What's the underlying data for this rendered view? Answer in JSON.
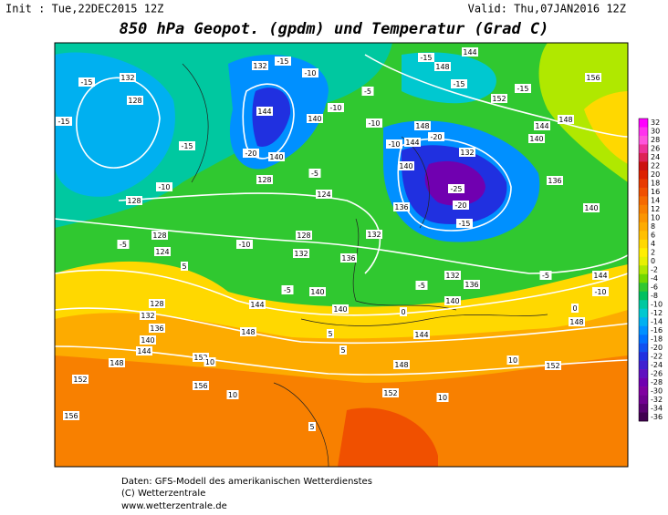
{
  "header": {
    "init": "Init : Tue,22DEC2015 12Z",
    "valid": "Valid: Thu,07JAN2016 12Z",
    "title": "850 hPa Geopot. (gpdm) und Temperatur (Grad C)"
  },
  "legend": {
    "levels": [
      32,
      30,
      28,
      26,
      24,
      22,
      20,
      18,
      16,
      14,
      12,
      10,
      8,
      6,
      4,
      2,
      0,
      -2,
      -4,
      -6,
      -8,
      -10,
      -12,
      -14,
      -16,
      -18,
      -20,
      -22,
      -24,
      -26,
      -28,
      -30,
      -32,
      -34,
      -36
    ],
    "colors": [
      "#ff00ff",
      "#ff33ee",
      "#ff55dd",
      "#ee3399",
      "#dd2255",
      "#cc1111",
      "#dd2200",
      "#e83a00",
      "#f05000",
      "#f56a00",
      "#f88000",
      "#fb9500",
      "#fdab00",
      "#ffc000",
      "#ffd800",
      "#ffee00",
      "#e8f000",
      "#b0e800",
      "#70d800",
      "#30c830",
      "#00c060",
      "#00c8a0",
      "#00c8d0",
      "#00b0f0",
      "#0090ff",
      "#0070ff",
      "#1050f0",
      "#2030e0",
      "#4020d0",
      "#6010c0",
      "#7000b0",
      "#8000a0",
      "#700090",
      "#580070",
      "#400050"
    ]
  },
  "contour_labels": [
    132,
    -15,
    128,
    -15,
    -15,
    -10,
    128,
    128,
    -5,
    124,
    5,
    128,
    132,
    136,
    140,
    144,
    148,
    152,
    156,
    156,
    152,
    10,
    10,
    148,
    144,
    -5,
    -10,
    132,
    128,
    124,
    -5,
    128,
    -20,
    140,
    144,
    -15,
    -10,
    -10,
    140,
    132,
    -5,
    -10,
    148,
    -20,
    144,
    -10,
    132,
    140,
    -25,
    -20,
    136,
    -15,
    132,
    136,
    132,
    136,
    140,
    -5,
    0,
    144,
    148,
    5,
    5,
    140,
    140,
    152,
    152,
    10,
    10,
    5,
    148,
    0,
    -5,
    144,
    140,
    136,
    140,
    144,
    148,
    -15,
    152,
    -15,
    -15,
    148,
    144,
    156,
    -10
  ],
  "footer": [
    "Daten: GFS-Modell des amerikanischen Wetterdienstes",
    "(C) Wetterzentrale",
    "www.wetterzentrale.de"
  ]
}
